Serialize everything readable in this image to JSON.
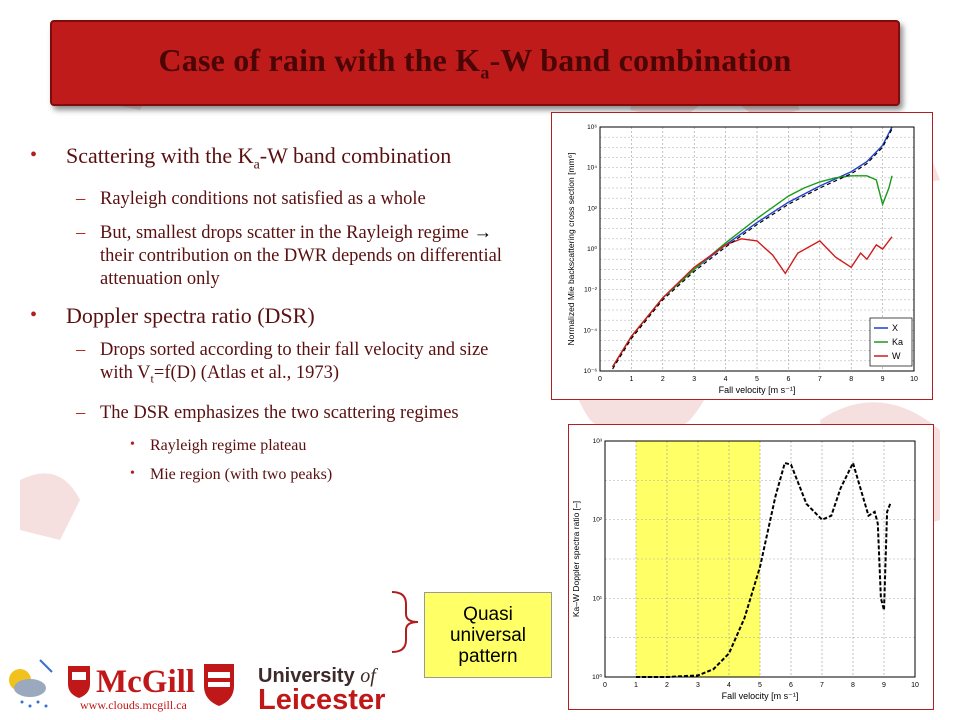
{
  "slide": {
    "title_pre": "Case of rain with the K",
    "title_sub": "a",
    "title_post": "-W band combination"
  },
  "bullets": {
    "b1_pre": "Scattering with the K",
    "b1_sub": "a",
    "b1_post": "-W band combination",
    "b1_sub1": "Rayleigh conditions not satisfied as a whole",
    "b1_sub2_pre": "But, smallest drops scatter in the Rayleigh regime ",
    "b1_sub2_arrow": "→",
    "b1_sub2_post": " their contribution on the DWR depends on differential attenuation only",
    "b2": "Doppler spectra ratio (DSR)",
    "b2_sub1_pre": "Drops sorted according to their fall velocity and size with V",
    "b2_sub1_sub": "t",
    "b2_sub1_post": "=f(D)  (Atlas et al., 1973)",
    "b2_sub2": "The DSR emphasizes the two scattering regimes",
    "b2_sub2_item1": "Rayleigh regime plateau",
    "b2_sub2_item2": "Mie region (with two peaks)"
  },
  "callout": {
    "line1": "Quasi",
    "line2": "universal",
    "line3": "pattern"
  },
  "logos": {
    "mcgill_name": "McGill",
    "mcgill_url": "www.clouds.mcgill.ca",
    "uol_line1": "University",
    "uol_of": "of",
    "uol_line2": "Leicester"
  },
  "chart_data": [
    {
      "type": "line",
      "xlabel": "Fall velocity [m s⁻¹]",
      "ylabel": "Normalized Mie backscattering cross section [mm⁶]",
      "xlim": [
        0,
        10
      ],
      "xticks": [
        "0",
        "1",
        "2",
        "3",
        "4",
        "5",
        "6",
        "7",
        "8",
        "9",
        "10"
      ],
      "ylim_log10": [
        -6,
        6
      ],
      "yticks": [
        "10⁻⁶",
        "10⁻⁴",
        "10⁻²",
        "10⁰",
        "10²",
        "10⁴",
        "10⁶"
      ],
      "grid": true,
      "legend_position": "bottom-right",
      "series": [
        {
          "name": "X",
          "color": "#1f3fd0",
          "x": [
            0.4,
            1,
            2,
            3,
            4,
            5,
            6,
            7,
            8,
            8.5,
            9,
            9.3
          ],
          "y_log10": [
            -5.8,
            -4.3,
            -2.4,
            -1.0,
            0.2,
            1.3,
            2.3,
            3.1,
            3.8,
            4.3,
            5.1,
            6.0
          ]
        },
        {
          "name": "Ka",
          "color": "#1a9a1a",
          "x": [
            0.4,
            1,
            2,
            3,
            4,
            5,
            6,
            6.5,
            7,
            7.5,
            8,
            8.5,
            8.8,
            9,
            9.2,
            9.3
          ],
          "y_log10": [
            -5.8,
            -4.3,
            -2.4,
            -1.0,
            0.3,
            1.5,
            2.6,
            3.0,
            3.3,
            3.5,
            3.6,
            3.6,
            3.4,
            2.2,
            3.0,
            3.6
          ]
        },
        {
          "name": "W",
          "color": "#d21a1a",
          "x": [
            0.4,
            1,
            2,
            3,
            4,
            4.5,
            5,
            5.5,
            5.9,
            6.3,
            7,
            7.5,
            8,
            8.3,
            8.5,
            8.8,
            9,
            9.3
          ],
          "y_log10": [
            -5.8,
            -4.3,
            -2.4,
            -0.9,
            0.2,
            0.5,
            0.4,
            -0.3,
            -1.2,
            -0.2,
            0.4,
            -0.4,
            -0.9,
            -0.2,
            -0.5,
            0.2,
            0.0,
            0.6
          ]
        }
      ]
    },
    {
      "type": "line",
      "xlabel": "Fall velocity [m s⁻¹]",
      "ylabel": "Ka–W Doppler spectra ratio [–]",
      "xlim": [
        0,
        10
      ],
      "xticks": [
        "0",
        "1",
        "2",
        "3",
        "4",
        "5",
        "6",
        "7",
        "8",
        "9",
        "10"
      ],
      "ylim_log10": [
        0,
        3
      ],
      "yticks": [
        "10⁰",
        "10¹",
        "10²",
        "10³"
      ],
      "grid": true,
      "highlight_x_range": [
        1,
        5
      ],
      "highlight_color": "#ffff66",
      "series": [
        {
          "name": "",
          "color": "#000000",
          "style": "dashed",
          "x": [
            1,
            2,
            3,
            3.5,
            4,
            4.5,
            5,
            5.5,
            5.8,
            6,
            6.5,
            7,
            7.3,
            7.6,
            8,
            8.5,
            8.7,
            8.8,
            8.9,
            9,
            9.1,
            9.2
          ],
          "y_log10": [
            0,
            0,
            0.02,
            0.1,
            0.3,
            0.75,
            1.4,
            2.3,
            2.72,
            2.7,
            2.2,
            2.0,
            2.05,
            2.4,
            2.72,
            2.05,
            2.1,
            1.95,
            1.0,
            0.85,
            2.1,
            2.2
          ]
        }
      ]
    }
  ]
}
